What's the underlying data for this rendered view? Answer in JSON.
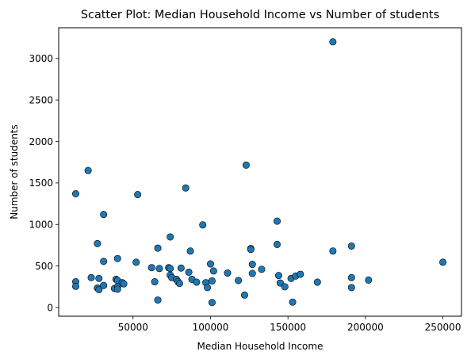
{
  "chart_data": {
    "type": "scatter",
    "title": "Scatter Plot: Median Household Income vs Number of students",
    "xlabel": "Median Household Income",
    "ylabel": "Number of students",
    "xlim": [
      2000,
      262000
    ],
    "ylim": [
      -105,
      3370
    ],
    "xticks": [
      50000,
      100000,
      150000,
      200000,
      250000
    ],
    "yticks": [
      0,
      500,
      1000,
      1500,
      2000,
      2500,
      3000
    ],
    "grid": false,
    "marker_color": "#1f77b4",
    "marker_edge_color": "#000000",
    "points": [
      [
        13000,
        1370
      ],
      [
        13000,
        310
      ],
      [
        13000,
        255
      ],
      [
        21000,
        1650
      ],
      [
        23000,
        360
      ],
      [
        27000,
        770
      ],
      [
        27000,
        235
      ],
      [
        28000,
        215
      ],
      [
        28000,
        350
      ],
      [
        31000,
        1120
      ],
      [
        31000,
        555
      ],
      [
        31000,
        265
      ],
      [
        38000,
        230
      ],
      [
        39000,
        340
      ],
      [
        40000,
        325
      ],
      [
        40000,
        590
      ],
      [
        40000,
        250
      ],
      [
        40000,
        220
      ],
      [
        43000,
        300
      ],
      [
        44000,
        285
      ],
      [
        52000,
        545
      ],
      [
        53000,
        1360
      ],
      [
        62000,
        480
      ],
      [
        64000,
        310
      ],
      [
        66000,
        715
      ],
      [
        66000,
        90
      ],
      [
        67000,
        470
      ],
      [
        73000,
        480
      ],
      [
        74000,
        850
      ],
      [
        74000,
        470
      ],
      [
        74000,
        390
      ],
      [
        75000,
        360
      ],
      [
        78000,
        340
      ],
      [
        79000,
        310
      ],
      [
        80000,
        290
      ],
      [
        81000,
        475
      ],
      [
        84000,
        1440
      ],
      [
        86000,
        425
      ],
      [
        87000,
        680
      ],
      [
        88000,
        340
      ],
      [
        91000,
        305
      ],
      [
        95000,
        995
      ],
      [
        97000,
        300
      ],
      [
        98000,
        240
      ],
      [
        100000,
        525
      ],
      [
        101000,
        60
      ],
      [
        101000,
        320
      ],
      [
        102000,
        440
      ],
      [
        111000,
        415
      ],
      [
        118000,
        325
      ],
      [
        122000,
        150
      ],
      [
        123000,
        1715
      ],
      [
        126000,
        710
      ],
      [
        126000,
        700
      ],
      [
        127000,
        410
      ],
      [
        127000,
        520
      ],
      [
        133000,
        460
      ],
      [
        143000,
        1040
      ],
      [
        143000,
        760
      ],
      [
        144000,
        385
      ],
      [
        145000,
        295
      ],
      [
        148000,
        250
      ],
      [
        152000,
        350
      ],
      [
        153000,
        65
      ],
      [
        155000,
        380
      ],
      [
        158000,
        400
      ],
      [
        169000,
        305
      ],
      [
        179000,
        3200
      ],
      [
        179000,
        680
      ],
      [
        191000,
        740
      ],
      [
        191000,
        360
      ],
      [
        191000,
        240
      ],
      [
        202000,
        330
      ],
      [
        250000,
        545
      ]
    ]
  }
}
